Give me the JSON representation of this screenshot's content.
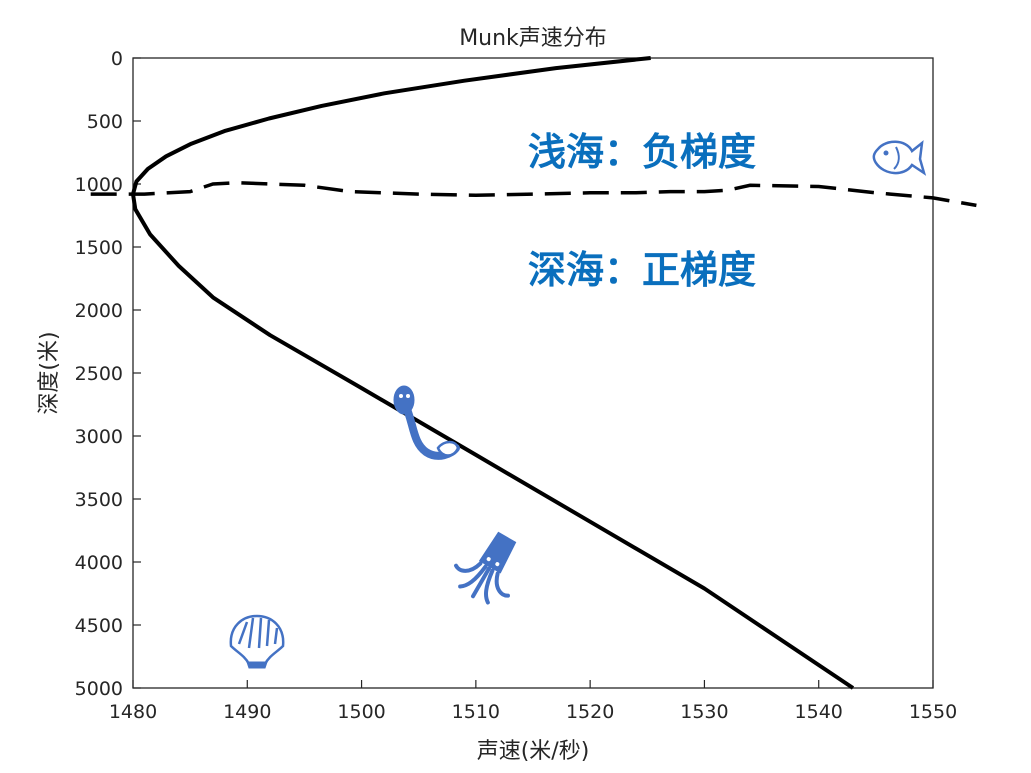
{
  "chart_data": {
    "type": "line",
    "title": "Munk声速分布",
    "xlabel": "声速(米/秒)",
    "ylabel": "深度(米)",
    "xlim": [
      1480,
      1550
    ],
    "ylim": [
      0,
      5000
    ],
    "y_inverted": true,
    "grid": false,
    "xticks": [
      "1480",
      "1490",
      "1500",
      "1510",
      "1520",
      "1530",
      "1540",
      "1550"
    ],
    "yticks": [
      "0",
      "500",
      "1000",
      "1500",
      "2000",
      "2500",
      "3000",
      "3500",
      "4000",
      "4500",
      "5000"
    ],
    "series": [
      {
        "style": "solid",
        "color": "#000000",
        "x": [
          1525.3,
          1517.0,
          1509.0,
          1502.0,
          1496.5,
          1491.9,
          1488.0,
          1485.1,
          1482.9,
          1481.3,
          1480.3,
          1480.0,
          1480.2,
          1481.5,
          1484.0,
          1487.0,
          1492.0,
          1500.0,
          1510.0,
          1520.0,
          1530.0,
          1543.0
        ],
        "y": [
          0,
          80,
          180,
          280,
          380,
          480,
          580,
          680,
          780,
          880,
          980,
          1080,
          1200,
          1400,
          1650,
          1900,
          2200,
          2620,
          3150,
          3680,
          4210,
          5000
        ]
      },
      {
        "style": "dashed",
        "color": "#000000",
        "x": [
          1476.3,
          1481.0,
          1485.0,
          1487.0,
          1489.0,
          1492.0,
          1495.0,
          1499.0,
          1505.0,
          1510.0,
          1515.0,
          1520.0,
          1524.0,
          1527.0,
          1530.0,
          1532.0,
          1534.0,
          1540.0,
          1545.0,
          1550.0,
          1553.8
        ],
        "y": [
          1080,
          1080,
          1060,
          1000,
          990,
          1000,
          1010,
          1060,
          1080,
          1090,
          1080,
          1070,
          1070,
          1060,
          1060,
          1050,
          1010,
          1020,
          1070,
          1110,
          1170
        ]
      }
    ],
    "annotations": [
      {
        "text": "浅海：负梯度"
      },
      {
        "text": "深海：正梯度"
      }
    ]
  },
  "colors": {
    "annotation": "#0a6fbd",
    "icons": "#4472c4"
  },
  "icons": [
    "fish-icon",
    "eel-icon",
    "squid-icon",
    "shell-icon"
  ]
}
